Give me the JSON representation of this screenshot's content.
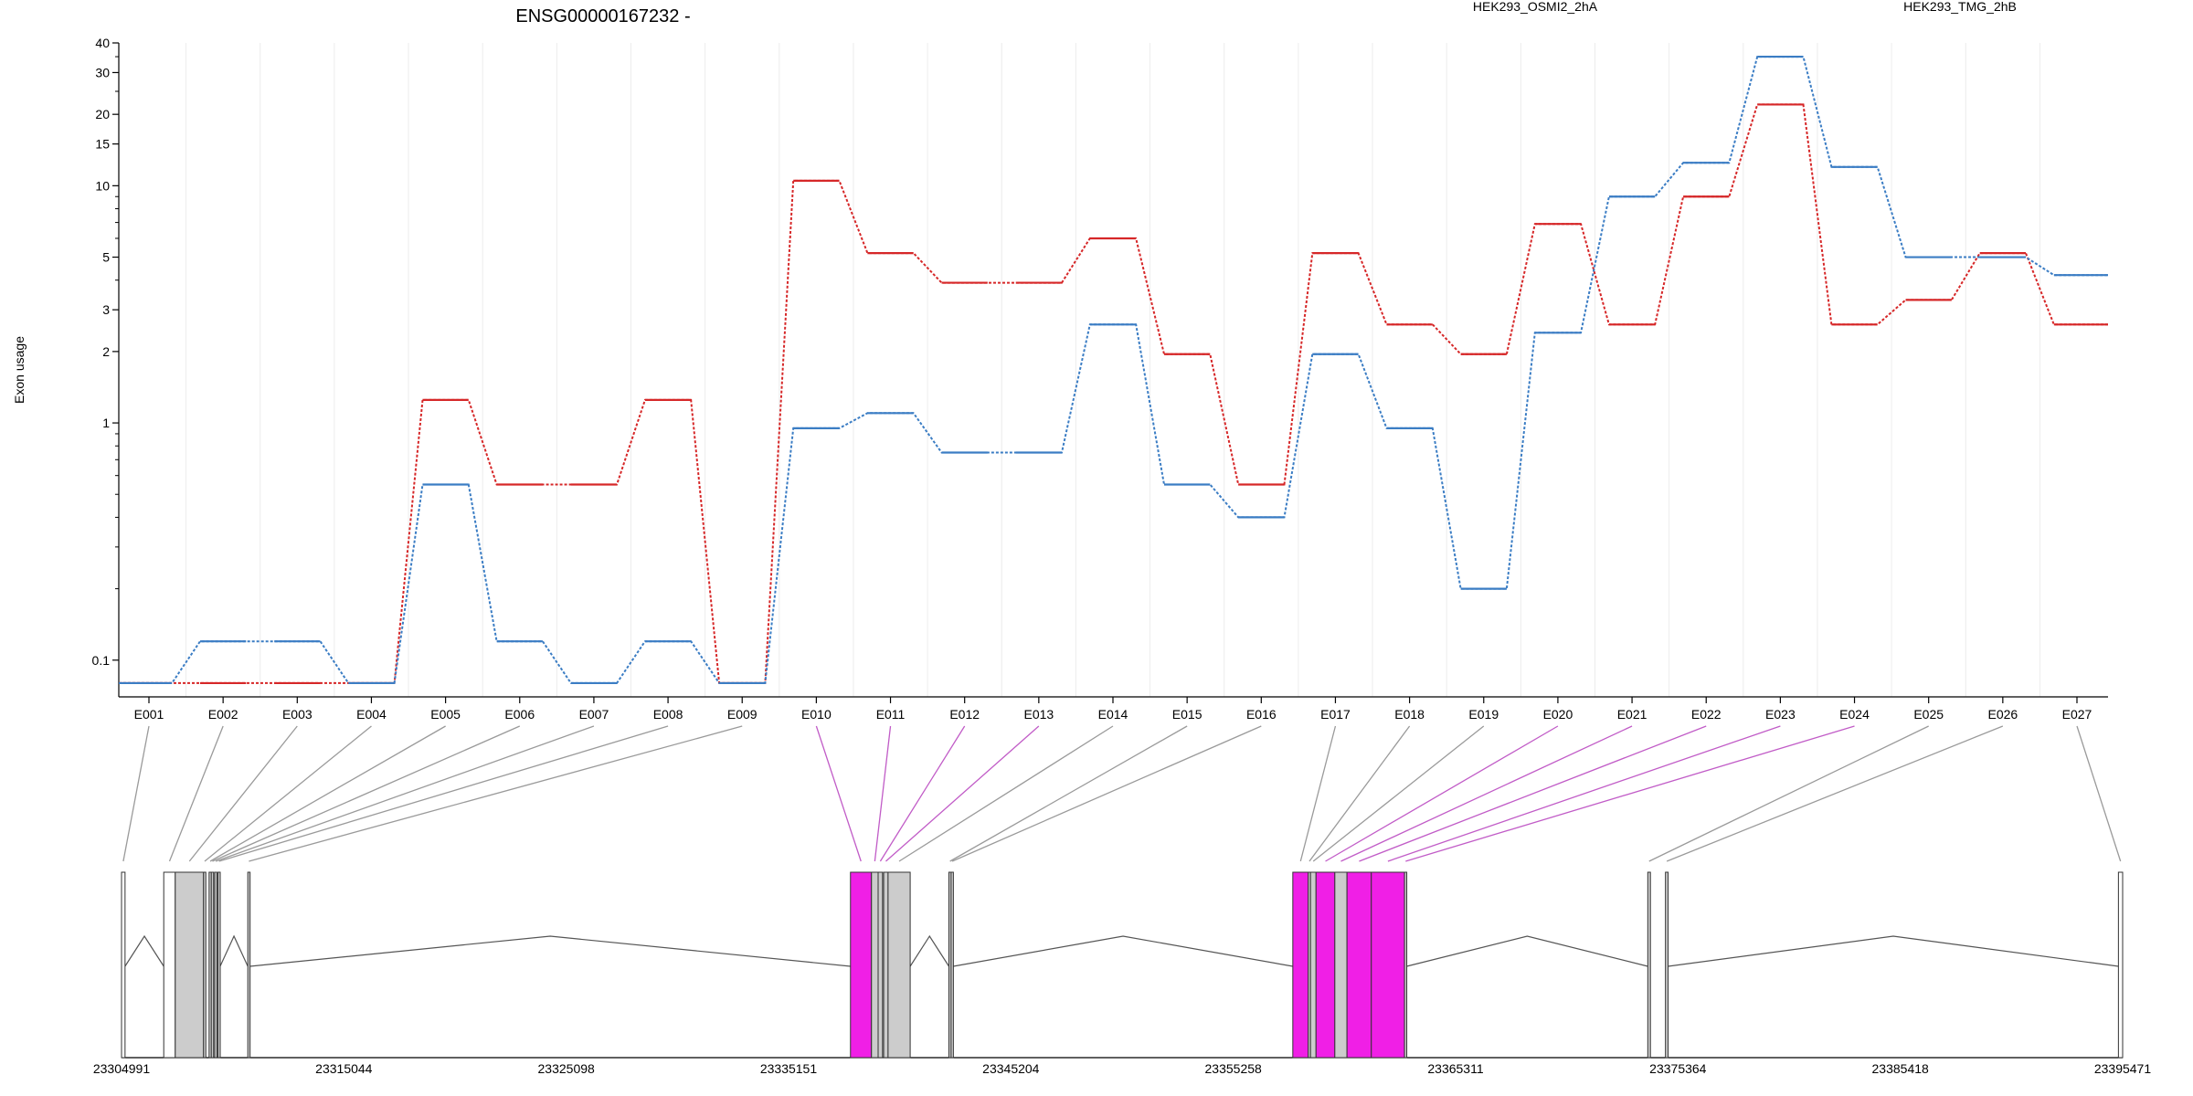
{
  "chart_data": {
    "type": "line",
    "title": "ENSG00000167232 -",
    "ylabel": "Exon usage",
    "y_scale": "log",
    "ylim": [
      0.07,
      40
    ],
    "y_ticks": [
      "0.1",
      "1",
      "2",
      "3",
      "5",
      "10",
      "15",
      "20",
      "30",
      "40"
    ],
    "categories": [
      "E001",
      "E002",
      "E003",
      "E004",
      "E005",
      "E006",
      "E007",
      "E008",
      "E009",
      "E010",
      "E011",
      "E012",
      "E013",
      "E014",
      "E015",
      "E016",
      "E017",
      "E018",
      "E019",
      "E020",
      "E021",
      "E022",
      "E023",
      "E024",
      "E025",
      "E026",
      "E027"
    ],
    "series": [
      {
        "name": "HEK293_OSMI2_2hA",
        "color": "#d62728",
        "values": [
          0.08,
          0.08,
          0.08,
          0.08,
          1.25,
          0.55,
          0.55,
          1.25,
          0.08,
          10.5,
          5.2,
          3.9,
          3.9,
          6.0,
          1.95,
          0.55,
          5.2,
          2.6,
          1.95,
          6.9,
          2.6,
          9.0,
          22.0,
          2.6,
          3.3,
          5.2,
          2.6
        ]
      },
      {
        "name": "HEK293_TMG_2hB",
        "color": "#3b7dc4",
        "values": [
          0.08,
          0.12,
          0.12,
          0.08,
          0.55,
          0.12,
          0.08,
          0.12,
          0.08,
          0.95,
          1.1,
          0.75,
          0.75,
          2.6,
          0.55,
          0.4,
          1.95,
          0.95,
          0.2,
          2.4,
          9.0,
          12.5,
          35.0,
          12.0,
          5.0,
          5.0,
          4.2
        ]
      }
    ],
    "legend_position": "top",
    "grid": "vertical",
    "gene_model": {
      "coordinate_ticks": [
        "23304991",
        "23315044",
        "23325098",
        "23335151",
        "23345204",
        "23355258",
        "23365311",
        "23375364",
        "23385418",
        "23395471"
      ],
      "range": [
        23304991,
        23395471
      ],
      "highlight_color": "#f01fe6",
      "intron_color": "#555555",
      "exon_fill": "#cccccc",
      "highlighted_exons": [
        "E010",
        "E011",
        "E012",
        "E013",
        "E020",
        "E021",
        "E022",
        "E023",
        "E024"
      ],
      "exons": [
        {
          "id": "E001",
          "start": 23304991,
          "end": 23305150,
          "kind": "box"
        },
        {
          "id": "E002",
          "start": 23306900,
          "end": 23307420,
          "kind": "box"
        },
        {
          "id": "E003",
          "start": 23307420,
          "end": 23308700,
          "kind": "shaded"
        },
        {
          "id": "E004",
          "start": 23308700,
          "end": 23308800,
          "kind": "line"
        },
        {
          "id": "E005",
          "start": 23308950,
          "end": 23309050,
          "kind": "line"
        },
        {
          "id": "E006",
          "start": 23309050,
          "end": 23309150,
          "kind": "line"
        },
        {
          "id": "E007",
          "start": 23309200,
          "end": 23309300,
          "kind": "line"
        },
        {
          "id": "E008",
          "start": 23309350,
          "end": 23309450,
          "kind": "line"
        },
        {
          "id": "E009",
          "start": 23310700,
          "end": 23310800,
          "kind": "line"
        },
        {
          "id": "E010",
          "start": 23337950,
          "end": 23338900,
          "kind": "magenta"
        },
        {
          "id": "E011",
          "start": 23338900,
          "end": 23339200,
          "kind": "line"
        },
        {
          "id": "E012",
          "start": 23339200,
          "end": 23339400,
          "kind": "line"
        },
        {
          "id": "E013",
          "start": 23339450,
          "end": 23339650,
          "kind": "line"
        },
        {
          "id": "E014",
          "start": 23339650,
          "end": 23340650,
          "kind": "shaded"
        },
        {
          "id": "E015",
          "start": 23342400,
          "end": 23342500,
          "kind": "line"
        },
        {
          "id": "E016",
          "start": 23342500,
          "end": 23342600,
          "kind": "line"
        },
        {
          "id": "E017",
          "start": 23357950,
          "end": 23358650,
          "kind": "magenta"
        },
        {
          "id": "E018",
          "start": 23358650,
          "end": 23358750,
          "kind": "line"
        },
        {
          "id": "E019",
          "start": 23358750,
          "end": 23359000,
          "kind": "line"
        },
        {
          "id": "E020",
          "start": 23359000,
          "end": 23359850,
          "kind": "magenta"
        },
        {
          "id": "E021",
          "start": 23359850,
          "end": 23360400,
          "kind": "shaded"
        },
        {
          "id": "E022",
          "start": 23360400,
          "end": 23361500,
          "kind": "magenta"
        },
        {
          "id": "E023",
          "start": 23361500,
          "end": 23363000,
          "kind": "magenta"
        },
        {
          "id": "E024",
          "start": 23363000,
          "end": 23363100,
          "kind": "line"
        },
        {
          "id": "E025",
          "start": 23374000,
          "end": 23374120,
          "kind": "line"
        },
        {
          "id": "E026",
          "start": 23374800,
          "end": 23374920,
          "kind": "line"
        },
        {
          "id": "E027",
          "start": 23395280,
          "end": 23395471,
          "kind": "box"
        }
      ]
    }
  }
}
